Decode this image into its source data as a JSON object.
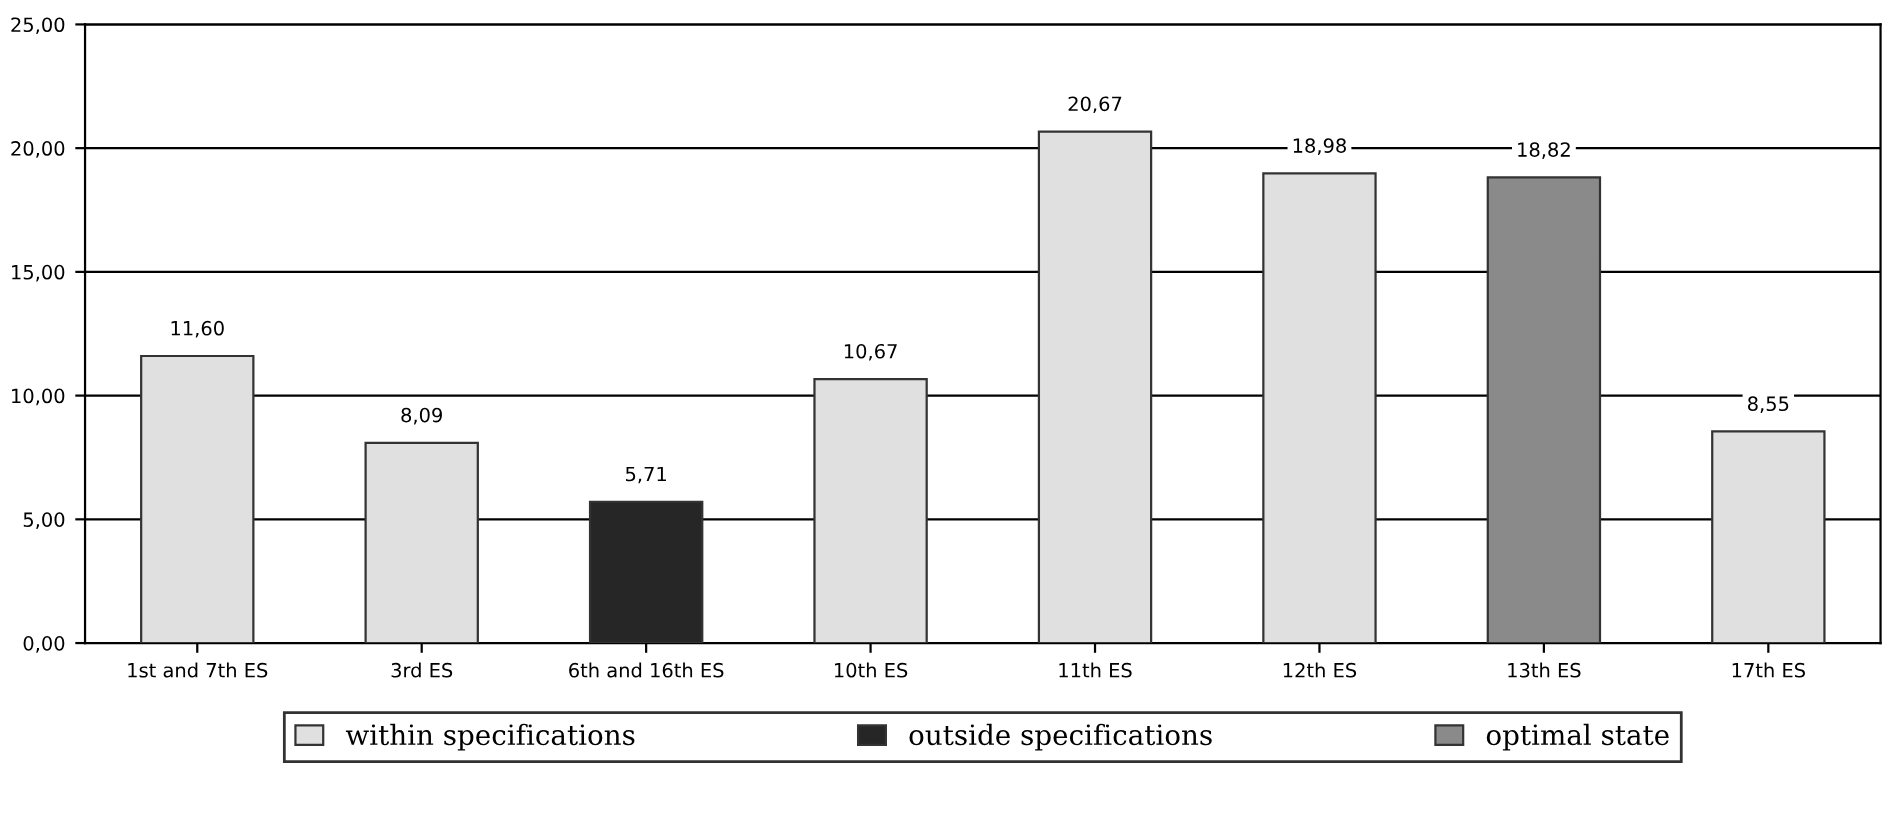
{
  "chart_data": {
    "type": "bar",
    "categories": [
      "1st and 7th ES",
      "3rd ES",
      "6th and 16th ES",
      "10th ES",
      "11th ES",
      "12th ES",
      "13th ES",
      "17th ES"
    ],
    "series": [
      {
        "name": "within specifications",
        "color": "#e0e0e0",
        "values": [
          11.6,
          8.09,
          null,
          10.67,
          20.67,
          18.98,
          null,
          8.55
        ],
        "value_labels": [
          "11,60",
          "8,09",
          null,
          "10,67",
          "20,67",
          "18,98",
          null,
          "8,55"
        ]
      },
      {
        "name": "outside specifications",
        "color": "#262626",
        "values": [
          null,
          null,
          5.71,
          null,
          null,
          null,
          null,
          null
        ],
        "value_labels": [
          null,
          null,
          "5,71",
          null,
          null,
          null,
          null,
          null
        ]
      },
      {
        "name": "optimal state",
        "color": "#8a8a8a",
        "values": [
          null,
          null,
          null,
          null,
          null,
          null,
          18.82,
          null
        ],
        "value_labels": [
          null,
          null,
          null,
          null,
          null,
          null,
          "18,82",
          null
        ]
      }
    ],
    "ylim": [
      0,
      25
    ],
    "yticks": [
      {
        "value": 0,
        "label": "0,00"
      },
      {
        "value": 5,
        "label": "5,00"
      },
      {
        "value": 10,
        "label": "10,00"
      },
      {
        "value": 15,
        "label": "15,00"
      },
      {
        "value": 20,
        "label": "20,00"
      },
      {
        "value": 25,
        "label": "25,00"
      }
    ],
    "grid": "y",
    "legend": "bottom"
  }
}
